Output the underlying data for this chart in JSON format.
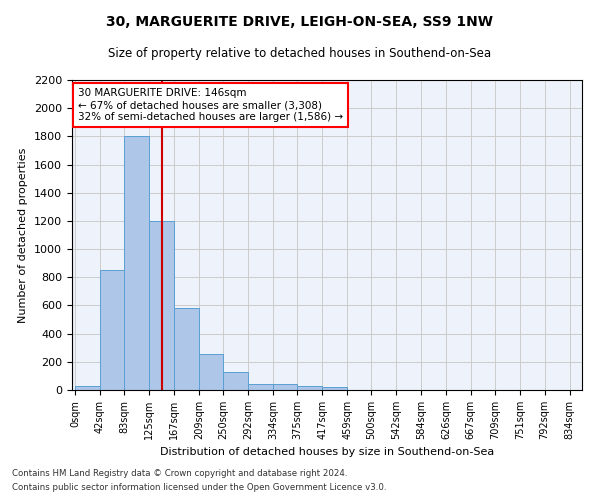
{
  "title1": "30, MARGUERITE DRIVE, LEIGH-ON-SEA, SS9 1NW",
  "title2": "Size of property relative to detached houses in Southend-on-Sea",
  "xlabel": "Distribution of detached houses by size in Southend-on-Sea",
  "ylabel": "Number of detached properties",
  "footnote1": "Contains HM Land Registry data © Crown copyright and database right 2024.",
  "footnote2": "Contains public sector information licensed under the Open Government Licence v3.0.",
  "annotation_line1": "30 MARGUERITE DRIVE: 146sqm",
  "annotation_line2": "← 67% of detached houses are smaller (3,308)",
  "annotation_line3": "32% of semi-detached houses are larger (1,586) →",
  "bar_labels": [
    "0sqm",
    "42sqm",
    "83sqm",
    "125sqm",
    "167sqm",
    "209sqm",
    "250sqm",
    "292sqm",
    "334sqm",
    "375sqm",
    "417sqm",
    "459sqm",
    "500sqm",
    "542sqm",
    "584sqm",
    "626sqm",
    "667sqm",
    "709sqm",
    "751sqm",
    "792sqm",
    "834sqm"
  ],
  "bar_values": [
    25,
    850,
    1800,
    1200,
    580,
    255,
    130,
    45,
    45,
    28,
    18,
    0,
    0,
    0,
    0,
    0,
    0,
    0,
    0,
    0,
    0
  ],
  "bar_color": "#aec6e8",
  "bar_edge_color": "#5a9fd4",
  "property_line_x": 146,
  "property_line_color": "#cc0000",
  "ylim": [
    0,
    2200
  ],
  "background_color": "#eef2fb",
  "grid_color": "#cccccc",
  "bin_edges": [
    0,
    42,
    83,
    125,
    167,
    209,
    250,
    292,
    334,
    375,
    417,
    459,
    500,
    542,
    584,
    626,
    667,
    709,
    751,
    792,
    834
  ]
}
